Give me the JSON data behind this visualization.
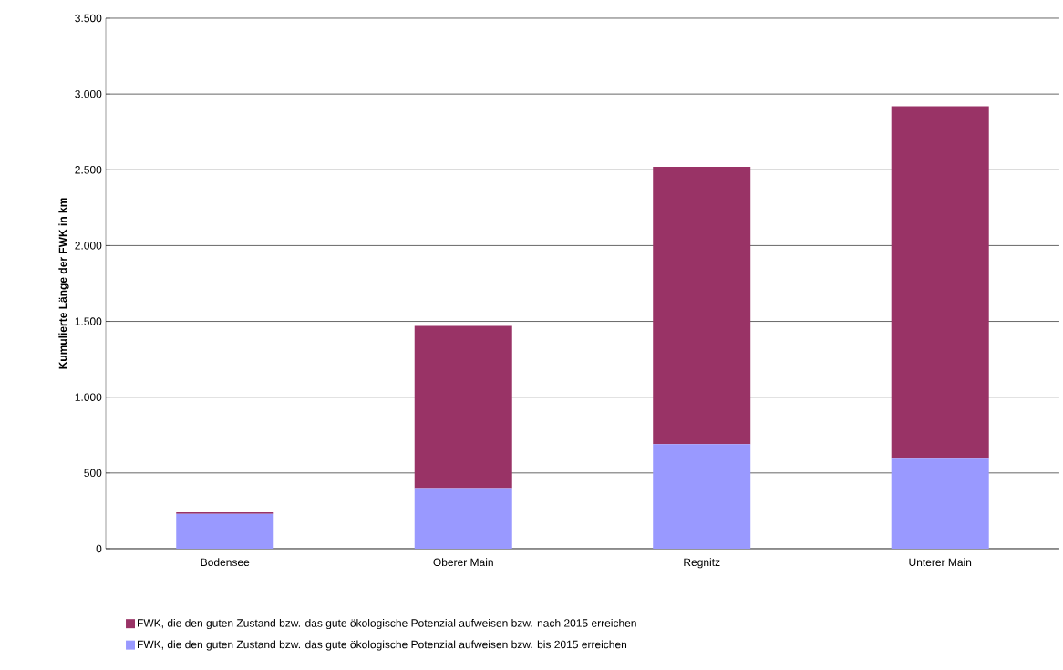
{
  "chart_data": {
    "type": "bar",
    "stacked": true,
    "ylabel": "Kumulierte Länge der FWK in km",
    "categories": [
      "Bodensee",
      "Oberer Main",
      "Regnitz",
      "Unterer Main"
    ],
    "series": [
      {
        "name": "FWK, die den guten Zustand bzw. das gute ökologische Potenzial aufweisen bzw. bis 2015 erreichen",
        "color": "#9999ff",
        "values": [
          230,
          400,
          690,
          600
        ]
      },
      {
        "name": "FWK, die den guten Zustand bzw. das gute ökologische Potenzial aufweisen bzw. nach 2015 erreichen",
        "color": "#993366",
        "values": [
          10,
          1070,
          1830,
          2320
        ]
      }
    ],
    "ylim": [
      0,
      3500
    ],
    "yticks": [
      0,
      500,
      {
        "value": 1000,
        "label": "1.000"
      },
      {
        "value": 1500,
        "label": "1.500"
      },
      {
        "value": 2000,
        "label": "2.000"
      },
      {
        "value": 2500,
        "label": "2.500"
      },
      {
        "value": 3000,
        "label": "3.000"
      },
      {
        "value": 3500,
        "label": "3.500"
      }
    ],
    "grid": "y",
    "legend": "bottom"
  }
}
